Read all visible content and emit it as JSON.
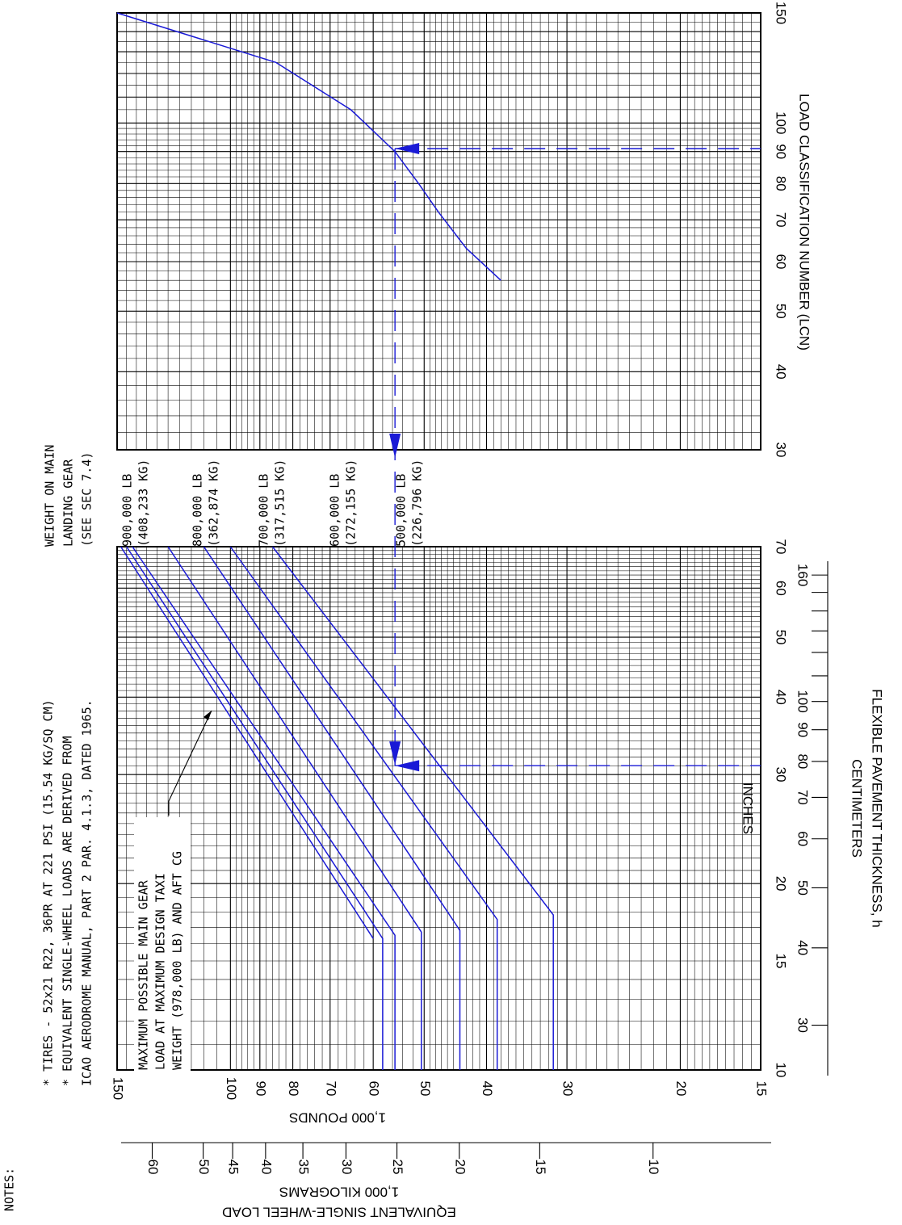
{
  "notes": {
    "heading": "NOTES:",
    "lines": [
      "*  TIRES - 52x21 R22, 36PR AT 221 PSI (15.54 KG/SQ CM)",
      "*  EQUIVALENT SINGLE-WHEEL LOADS ARE DERIVED FROM",
      "   ICAO AERODROME MANUAL, PART 2 PAR. 4.1.3, DATED 1965."
    ]
  },
  "legend_header": [
    "WEIGHT ON MAIN",
    "LANDING GEAR",
    "(SEE SEC 7.4)"
  ],
  "annotation": [
    "MAXIMUM POSSIBLE MAIN GEAR",
    "LOAD AT MAXIMUM DESIGN TAXI",
    "WEIGHT (978,000 LB) AND AFT CG"
  ],
  "axes": {
    "esw_pounds_title": "1,000 POUNDS",
    "esw_kg_title": "1,000 KILOGRAMS",
    "esw_title": "EQUIVALENT SINGLE-WHEEL LOAD",
    "inches_title": "INCHES",
    "cm_title": "CENTIMETERS",
    "thickness_title": "FLEXIBLE PAVEMENT THICKNESS, h",
    "lcn_title": "LOAD CLASSIFICATION NUMBER (LCN)"
  },
  "chart_data": [
    {
      "type": "line",
      "title": "",
      "x_axis": {
        "label": "INCHES",
        "scale": "log",
        "range": [
          10,
          70
        ],
        "ticks": [
          10,
          15,
          20,
          30,
          40,
          50,
          60,
          70
        ]
      },
      "x_axis_secondary": {
        "label": "CENTIMETERS",
        "ticks": [
          30,
          40,
          50,
          60,
          70,
          80,
          90,
          100,
          160
        ]
      },
      "y_axis": {
        "label": "1,000 POUNDS",
        "scale": "log",
        "range": [
          15,
          150
        ],
        "ticks": [
          15,
          20,
          30,
          40,
          50,
          60,
          70,
          80,
          90,
          100,
          150
        ]
      },
      "y_axis_secondary": {
        "label": "1,000 KILOGRAMS",
        "ticks": [
          10,
          15,
          20,
          25,
          30,
          35,
          40,
          45,
          50,
          60
        ]
      },
      "series": [
        {
          "name": "900,000 LB",
          "sublabel": "(408,233 KG)",
          "points": [
            [
              10,
              58
            ],
            [
              16.3,
              58
            ],
            [
              70,
              145
            ]
          ]
        },
        {
          "name": "978,000 LB",
          "points": [
            [
              16.3,
              60
            ],
            [
              70,
              148
            ]
          ]
        },
        {
          "name": "800,000 LB",
          "sublabel": "(362,874 KG)",
          "points": [
            [
              10,
              55.5
            ],
            [
              16.5,
              55.5
            ],
            [
              70,
              142
            ]
          ]
        },
        {
          "name": "700,000 LB",
          "sublabel": "(317,515 KG)",
          "points": [
            [
              10,
              50.5
            ],
            [
              16.7,
              50.5
            ],
            [
              70,
              125
            ]
          ]
        },
        {
          "name": "600,000 LB",
          "sublabel": "(272,155 KG)",
          "points": [
            [
              10,
              44
            ],
            [
              16.8,
              44
            ],
            [
              70,
              110
            ]
          ]
        },
        {
          "name": "500,000 LB",
          "sublabel": "(226,796 KG)",
          "points": [
            [
              10,
              38.5
            ],
            [
              17.5,
              38.5
            ],
            [
              70,
              100
            ]
          ]
        },
        {
          "name": "",
          "points": [
            [
              10,
              31.5
            ],
            [
              17.8,
              31.5
            ],
            [
              70,
              86
            ]
          ]
        }
      ],
      "example_path": {
        "thickness_in": 31,
        "esw_kips": 55.5
      }
    },
    {
      "type": "line",
      "title": "",
      "x_axis": {
        "label": "LOAD CLASSIFICATION NUMBER (LCN)",
        "scale": "log",
        "range": [
          30,
          150
        ],
        "ticks": [
          30,
          40,
          50,
          60,
          70,
          80,
          90,
          100,
          150
        ]
      },
      "y_axis": {
        "label": "1,000 POUNDS",
        "scale": "log",
        "range": [
          15,
          150
        ]
      },
      "series": [
        {
          "name": "",
          "points": [
            [
              56,
              38
            ],
            [
              63,
              43
            ],
            [
              72,
              47.5
            ],
            [
              80,
              51
            ],
            [
              90,
              55.5
            ],
            [
              105,
              65
            ],
            [
              125,
              85
            ],
            [
              150,
              150
            ]
          ]
        }
      ],
      "example_path": {
        "lcn": 91,
        "esw_kips": 55.5
      }
    }
  ]
}
